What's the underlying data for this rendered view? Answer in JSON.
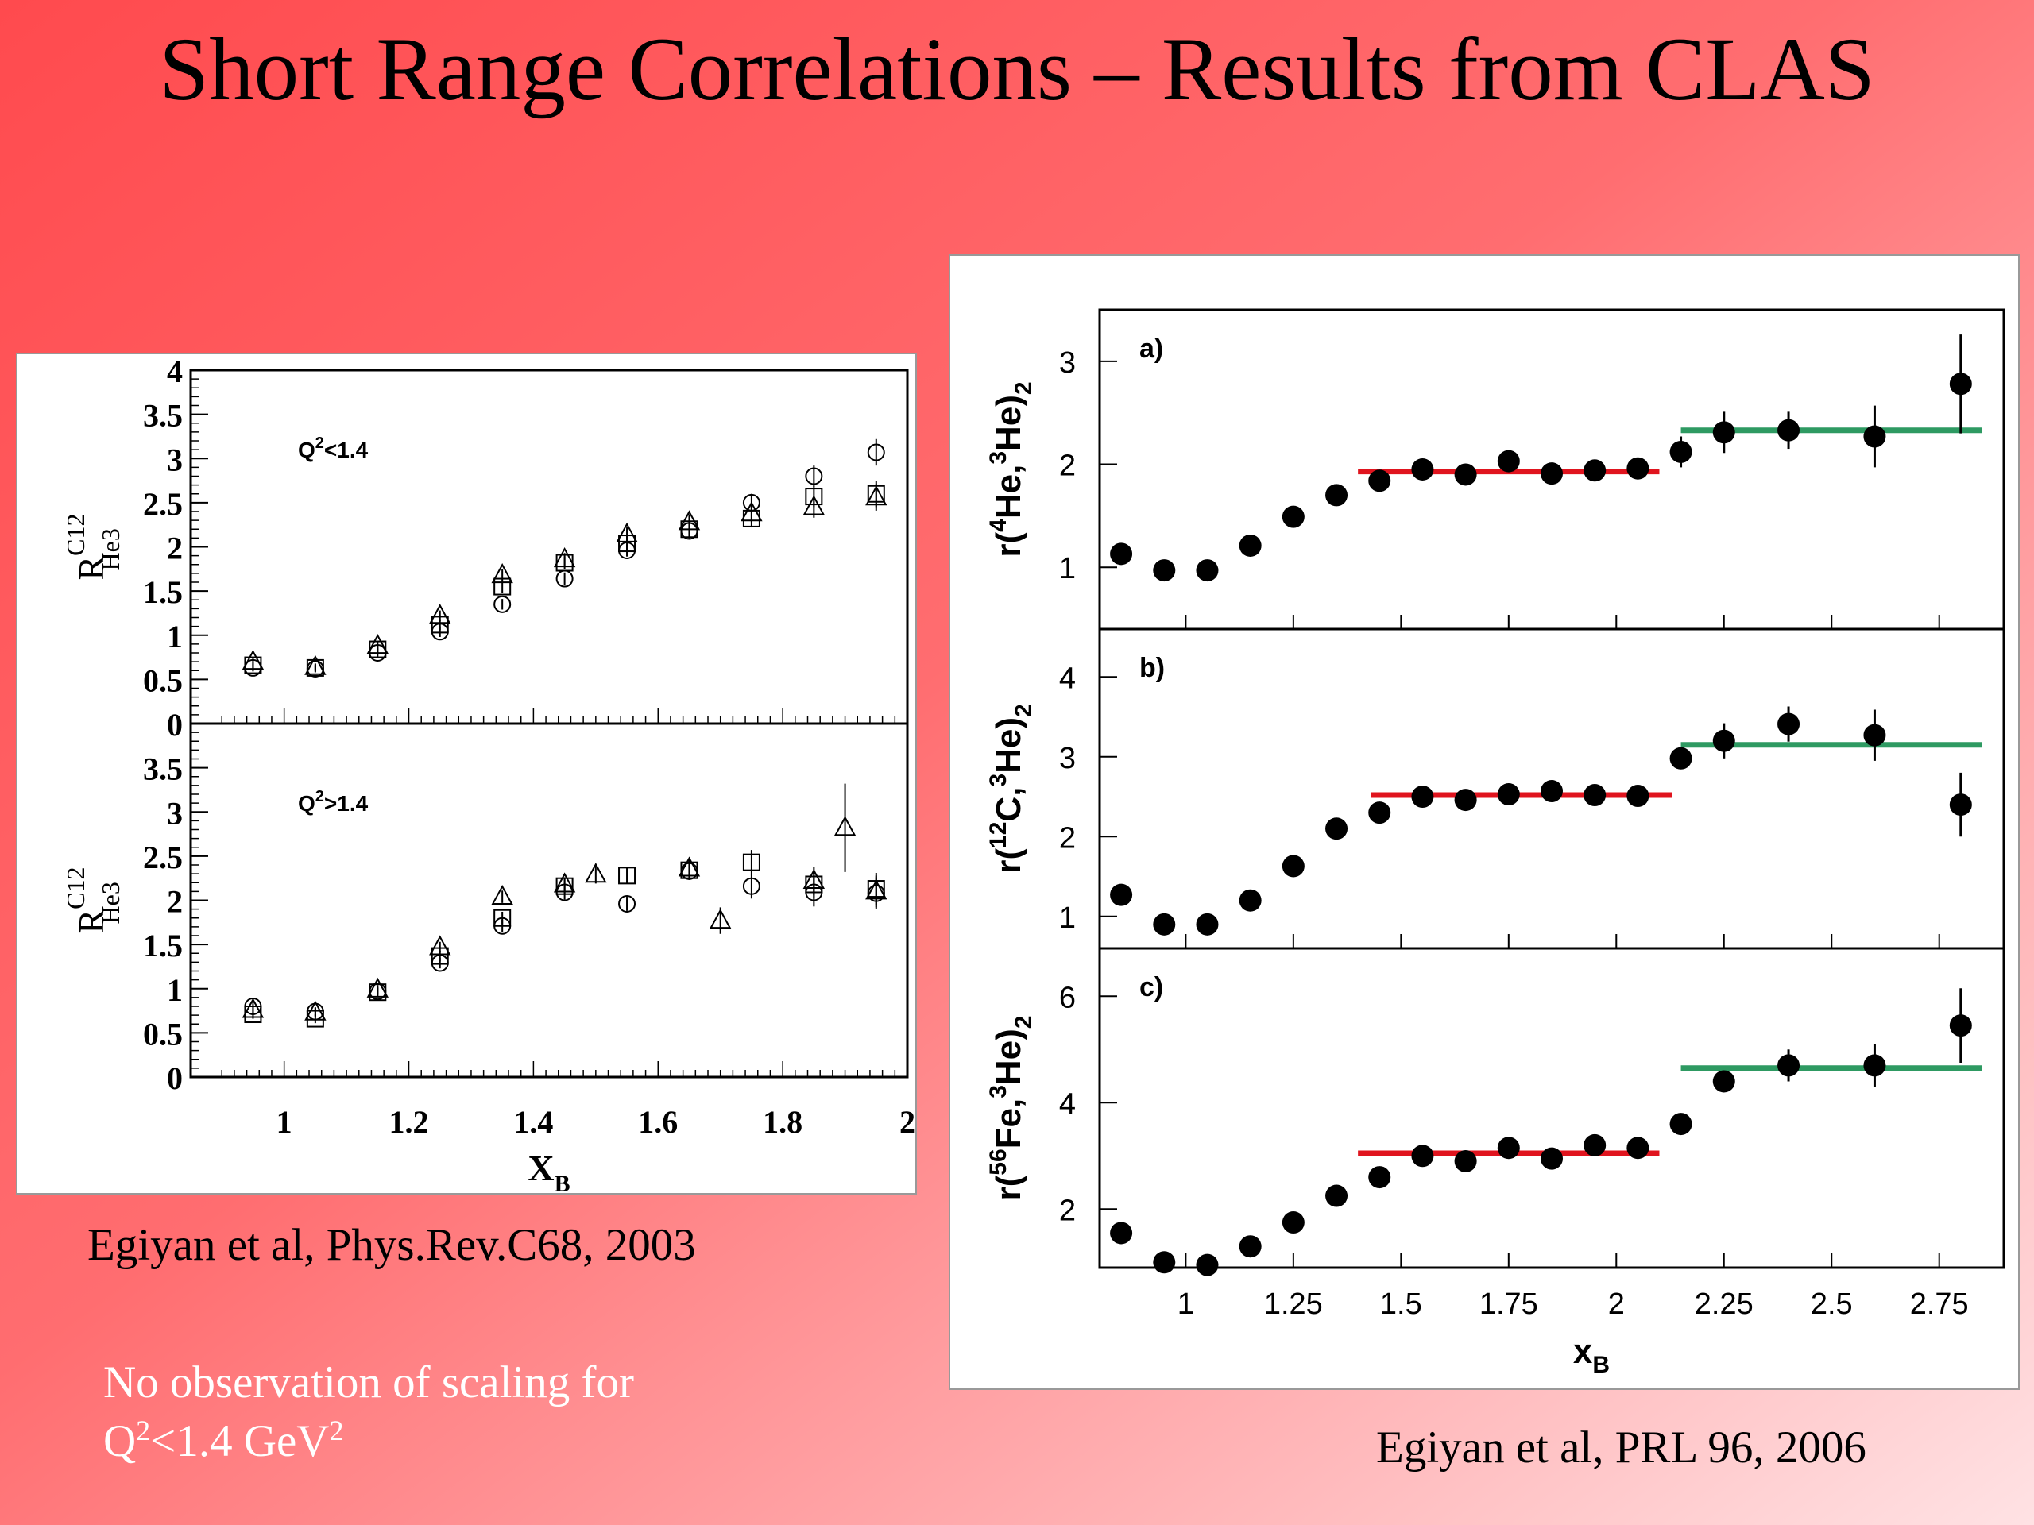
{
  "slide": {
    "title": "Short Range Correlations – Results from CLAS",
    "left_caption": "Egiyan et al,  Phys.Rev.C68, 2003",
    "right_caption": "Egiyan et al,  PRL 96, 2006",
    "note_line1": "No observation of scaling for",
    "note_line2_pre": "Q",
    "note_line2_sup1": "2",
    "note_line2_mid": "<1.4 GeV",
    "note_line2_sup2": "2",
    "colors": {
      "background_red": "#ff4a4e",
      "background_light": "#ffe2e4",
      "fit_red": "#e0141e",
      "fit_green": "#2e9a62"
    }
  },
  "chart_data": [
    {
      "type": "scatter",
      "panel": "left-top",
      "annotation": "Q²<1.4",
      "annotation_base": "Q",
      "annotation_sup": "2",
      "annotation_rest": "<1.4",
      "ylabel_base": "R",
      "ylabel_sup": "C12",
      "ylabel_sub": "He3",
      "xlim": [
        0.85,
        2.0
      ],
      "ylim": [
        0,
        4
      ],
      "yticks": [
        "4",
        "3.5",
        "3",
        "2.5",
        "2",
        "1.5",
        "1",
        "0.5",
        "0"
      ],
      "series": [
        {
          "marker": "circle",
          "x": [
            0.95,
            1.05,
            1.15,
            1.25,
            1.35,
            1.45,
            1.55,
            1.65,
            1.75,
            1.85,
            1.95
          ],
          "y": [
            0.63,
            0.62,
            0.8,
            1.04,
            1.35,
            1.64,
            1.96,
            2.18,
            2.5,
            2.8,
            3.07
          ],
          "err": [
            0.04,
            0.04,
            0.05,
            0.06,
            0.06,
            0.07,
            0.07,
            0.08,
            0.1,
            0.12,
            0.15
          ]
        },
        {
          "marker": "square",
          "x": [
            0.95,
            1.05,
            1.15,
            1.25,
            1.35,
            1.45,
            1.55,
            1.65,
            1.75,
            1.85,
            1.95
          ],
          "y": [
            0.66,
            0.63,
            0.84,
            1.12,
            1.55,
            1.82,
            2.04,
            2.2,
            2.32,
            2.57,
            2.6
          ],
          "err": [
            0.04,
            0.04,
            0.05,
            0.06,
            0.07,
            0.07,
            0.08,
            0.09,
            0.1,
            0.12,
            0.15
          ]
        },
        {
          "marker": "triangle",
          "x": [
            0.95,
            1.05,
            1.15,
            1.25,
            1.35,
            1.45,
            1.55,
            1.65,
            1.75,
            1.85,
            1.95
          ],
          "y": [
            0.7,
            0.64,
            0.88,
            1.22,
            1.68,
            1.86,
            2.14,
            2.28,
            2.38,
            2.45,
            2.56
          ],
          "err": [
            0.04,
            0.04,
            0.05,
            0.06,
            0.07,
            0.07,
            0.08,
            0.09,
            0.1,
            0.12,
            0.15
          ]
        }
      ]
    },
    {
      "type": "scatter",
      "panel": "left-bottom",
      "annotation": "Q²>1.4",
      "annotation_base": "Q",
      "annotation_sup": "2",
      "annotation_rest": ">1.4",
      "ylabel_base": "R",
      "ylabel_sup": "C12",
      "ylabel_sub": "He3",
      "xlabel_base": "X",
      "xlabel_sub": "B",
      "xlim": [
        0.85,
        2.0
      ],
      "ylim": [
        0,
        4
      ],
      "yticks": [
        "3.5",
        "3",
        "2.5",
        "2",
        "1.5",
        "1",
        "0.5",
        "0"
      ],
      "xticks": [
        1,
        1.2,
        1.4,
        1.6,
        1.8,
        2
      ],
      "xticklabels": [
        "1",
        "1.2",
        "1.4",
        "1.6",
        "1.8",
        "2"
      ],
      "series": [
        {
          "marker": "circle",
          "x": [
            0.95,
            1.05,
            1.15,
            1.25,
            1.35,
            1.45,
            1.55,
            1.65,
            1.75,
            1.85,
            1.95
          ],
          "y": [
            0.8,
            0.74,
            0.97,
            1.29,
            1.71,
            2.09,
            1.96,
            2.33,
            2.16,
            2.09,
            2.08
          ],
          "err": [
            0.05,
            0.05,
            0.05,
            0.06,
            0.07,
            0.08,
            0.08,
            0.1,
            0.14,
            0.16,
            0.18
          ]
        },
        {
          "marker": "square",
          "x": [
            0.95,
            1.05,
            1.15,
            1.25,
            1.35,
            1.45,
            1.55,
            1.65,
            1.75,
            1.85,
            1.95
          ],
          "y": [
            0.71,
            0.66,
            0.96,
            1.37,
            1.8,
            2.16,
            2.28,
            2.34,
            2.43,
            2.18,
            2.13
          ],
          "err": [
            0.05,
            0.05,
            0.05,
            0.06,
            0.07,
            0.08,
            0.09,
            0.1,
            0.14,
            0.16,
            0.18
          ]
        },
        {
          "marker": "triangle",
          "x": [
            0.95,
            1.05,
            1.15,
            1.25,
            1.35,
            1.45,
            1.5,
            1.65,
            1.7,
            1.85,
            1.9,
            1.95
          ],
          "y": [
            0.76,
            0.73,
            0.99,
            1.47,
            2.04,
            2.18,
            2.29,
            2.36,
            1.77,
            2.22,
            2.82,
            2.1
          ],
          "err": [
            0.05,
            0.05,
            0.05,
            0.06,
            0.07,
            0.08,
            0.1,
            0.11,
            0.15,
            0.16,
            0.5,
            0.18
          ]
        }
      ]
    },
    {
      "type": "scatter",
      "panel": "a)",
      "ylabel_pre": "r(",
      "ylabel_sup1": "4",
      "ylabel_mid": "He,",
      "ylabel_sup2": "3",
      "ylabel_post": "He)",
      "ylabel_sub": "2",
      "xlim": [
        0.8,
        2.9
      ],
      "ylim": [
        0.4,
        3.5
      ],
      "yticks": [
        1,
        2,
        3
      ],
      "yticklabels": [
        "1",
        "2",
        "3"
      ],
      "x": [
        0.85,
        0.95,
        1.05,
        1.15,
        1.25,
        1.35,
        1.45,
        1.55,
        1.65,
        1.75,
        1.85,
        1.95,
        2.05,
        2.15,
        2.25,
        2.4,
        2.6,
        2.8
      ],
      "y": [
        1.13,
        0.97,
        0.97,
        1.21,
        1.49,
        1.7,
        1.84,
        1.95,
        1.9,
        2.03,
        1.91,
        1.94,
        1.96,
        2.12,
        2.31,
        2.33,
        2.27,
        2.78
      ],
      "err": [
        0.04,
        0.04,
        0.04,
        0.04,
        0.04,
        0.04,
        0.04,
        0.04,
        0.04,
        0.05,
        0.05,
        0.05,
        0.06,
        0.15,
        0.2,
        0.18,
        0.3,
        0.48
      ],
      "fits": [
        {
          "color": "red",
          "x0": 1.4,
          "x1": 2.1,
          "y": 1.93
        },
        {
          "color": "green",
          "x0": 2.15,
          "x1": 2.85,
          "y": 2.33
        }
      ]
    },
    {
      "type": "scatter",
      "panel": "b)",
      "ylabel_pre": "r(",
      "ylabel_sup1": "12",
      "ylabel_mid": "C,",
      "ylabel_sup2": "3",
      "ylabel_post": "He)",
      "ylabel_sub": "2",
      "xlim": [
        0.8,
        2.9
      ],
      "ylim": [
        0.6,
        4.6
      ],
      "yticks": [
        1,
        2,
        3,
        4
      ],
      "yticklabels": [
        "1",
        "2",
        "3",
        "4"
      ],
      "x": [
        0.85,
        0.95,
        1.05,
        1.15,
        1.25,
        1.35,
        1.45,
        1.55,
        1.65,
        1.75,
        1.85,
        1.95,
        2.05,
        2.15,
        2.25,
        2.4,
        2.6,
        2.8
      ],
      "y": [
        1.27,
        0.9,
        0.9,
        1.2,
        1.63,
        2.1,
        2.3,
        2.5,
        2.46,
        2.53,
        2.57,
        2.52,
        2.51,
        2.98,
        3.2,
        3.41,
        3.27,
        2.4
      ],
      "err": [
        0.05,
        0.05,
        0.05,
        0.05,
        0.05,
        0.05,
        0.05,
        0.05,
        0.05,
        0.06,
        0.06,
        0.06,
        0.08,
        0.12,
        0.22,
        0.22,
        0.32,
        0.4
      ],
      "fits": [
        {
          "color": "red",
          "x0": 1.43,
          "x1": 2.13,
          "y": 2.52
        },
        {
          "color": "green",
          "x0": 2.15,
          "x1": 2.85,
          "y": 3.15
        }
      ]
    },
    {
      "type": "scatter",
      "panel": "c)",
      "ylabel_pre": "r(",
      "ylabel_sup1": "56",
      "ylabel_mid": "Fe,",
      "ylabel_sup2": "3",
      "ylabel_post": "He)",
      "ylabel_sub": "2",
      "xlabel_base": "x",
      "xlabel_sub": "B",
      "xlim": [
        0.8,
        2.9
      ],
      "ylim": [
        0.9,
        6.9
      ],
      "yticks": [
        2,
        4,
        6
      ],
      "yticklabels": [
        "2",
        "4",
        "6"
      ],
      "xticks": [
        1,
        1.25,
        1.5,
        1.75,
        2,
        2.25,
        2.5,
        2.75
      ],
      "xticklabels": [
        "1",
        "1.25",
        "1.5",
        "1.75",
        "2",
        "2.25",
        "2.5",
        "2.75"
      ],
      "x": [
        0.85,
        0.95,
        1.05,
        1.15,
        1.25,
        1.35,
        1.45,
        1.55,
        1.65,
        1.75,
        1.85,
        1.95,
        2.05,
        2.15,
        2.25,
        2.4,
        2.6,
        2.8
      ],
      "y": [
        1.55,
        1.0,
        0.95,
        1.3,
        1.75,
        2.25,
        2.6,
        3.0,
        2.9,
        3.15,
        2.95,
        3.2,
        3.15,
        3.6,
        4.4,
        4.7,
        4.7,
        5.45
      ],
      "err": [
        0.06,
        0.06,
        0.06,
        0.06,
        0.06,
        0.06,
        0.06,
        0.06,
        0.06,
        0.07,
        0.07,
        0.07,
        0.08,
        0.1,
        0.2,
        0.3,
        0.4,
        0.7
      ],
      "fits": [
        {
          "color": "red",
          "x0": 1.4,
          "x1": 2.1,
          "y": 3.05
        },
        {
          "color": "green",
          "x0": 2.15,
          "x1": 2.85,
          "y": 4.65
        }
      ]
    }
  ]
}
